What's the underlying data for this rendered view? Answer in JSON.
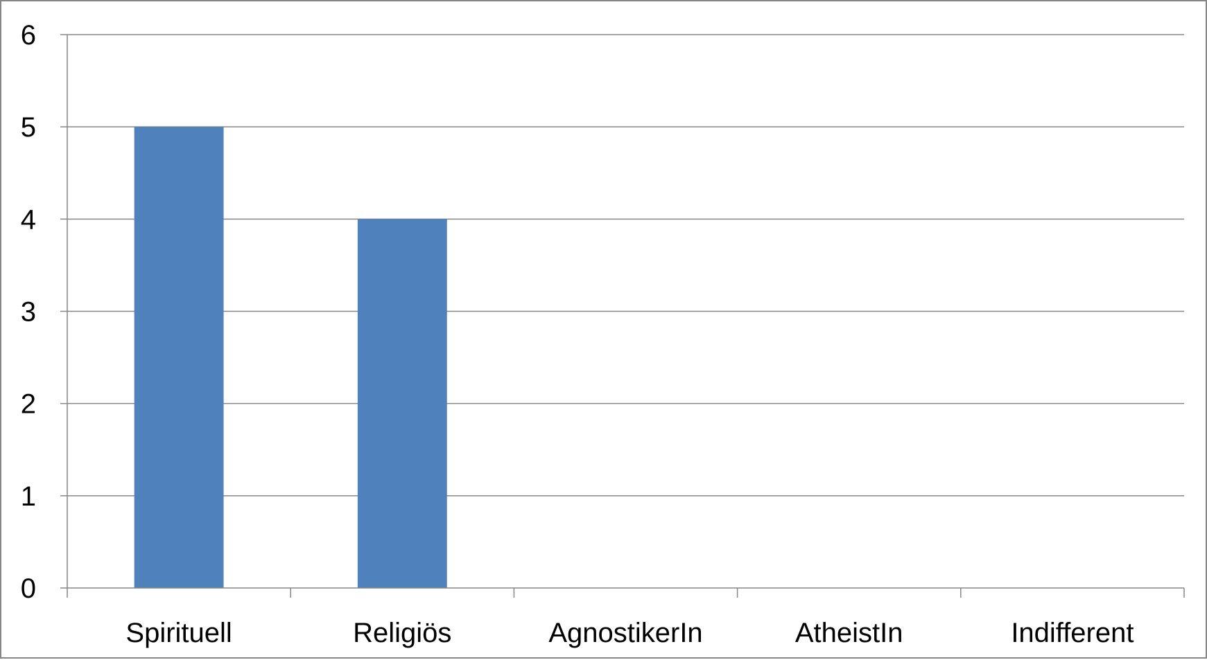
{
  "chart_data": {
    "type": "bar",
    "categories": [
      "Spirituell",
      "Religiös",
      "AgnostikerIn",
      "AtheistIn",
      "Indifferent"
    ],
    "values": [
      5,
      4,
      0,
      0,
      0
    ],
    "title": "",
    "xlabel": "",
    "ylabel": "",
    "ylim": [
      0,
      6
    ],
    "yticks": [
      0,
      1,
      2,
      3,
      4,
      5,
      6
    ],
    "grid": true,
    "legend": "none",
    "colors": {
      "bar": "#4F81BD",
      "grid": "#868686",
      "axis": "#868686",
      "frame": "#868686"
    }
  }
}
